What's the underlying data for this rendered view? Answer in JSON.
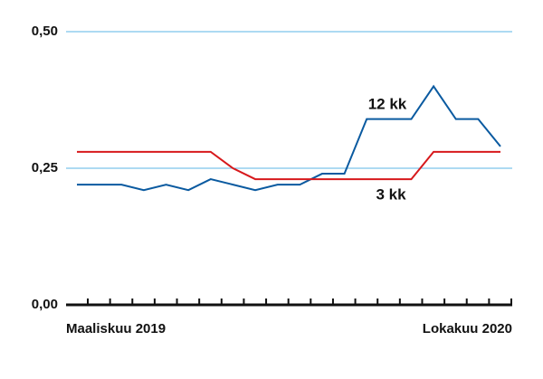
{
  "chart_data": {
    "type": "line",
    "categories": [
      "Maaliskuu 2019",
      null,
      null,
      null,
      null,
      null,
      null,
      null,
      null,
      null,
      null,
      null,
      null,
      null,
      null,
      null,
      null,
      null,
      null,
      "Lokakuu 2020"
    ],
    "series": [
      {
        "name": "12 kk",
        "color": "#0a5aa0",
        "values": [
          0.22,
          0.22,
          0.22,
          0.21,
          0.22,
          0.21,
          0.23,
          0.22,
          0.21,
          0.22,
          0.22,
          0.24,
          0.24,
          0.34,
          0.34,
          0.34,
          0.4,
          0.34,
          0.34,
          0.29
        ]
      },
      {
        "name": "3 kk",
        "color": "#d7191c",
        "values": [
          0.28,
          0.28,
          0.28,
          0.28,
          0.28,
          0.28,
          0.28,
          0.25,
          0.23,
          0.23,
          0.23,
          0.23,
          0.23,
          0.23,
          0.23,
          0.23,
          0.28,
          0.28,
          0.28,
          0.28
        ]
      }
    ],
    "ylim": [
      0,
      0.5
    ],
    "yticks": [
      {
        "value": 0,
        "label": "0,00"
      },
      {
        "value": 0.25,
        "label": "0,25"
      },
      {
        "value": 0.5,
        "label": "0,50"
      }
    ],
    "grid": true
  }
}
